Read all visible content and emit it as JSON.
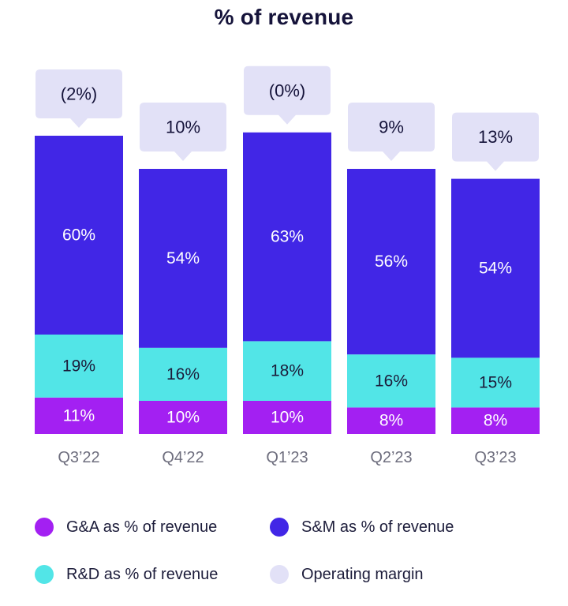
{
  "chart_data": {
    "type": "bar",
    "stacked": true,
    "title": "% of revenue",
    "categories": [
      "Q3’22",
      "Q4’22",
      "Q1’23",
      "Q2’23",
      "Q3’23"
    ],
    "series": [
      {
        "name": "G&A as % of revenue",
        "values": [
          11,
          10,
          10,
          8,
          8
        ],
        "labels": [
          "11%",
          "10%",
          "10%",
          "8%",
          "8%"
        ],
        "color": "#a320f2"
      },
      {
        "name": "R&D as % of revenue",
        "values": [
          19,
          16,
          18,
          16,
          15
        ],
        "labels": [
          "19%",
          "16%",
          "18%",
          "16%",
          "15%"
        ],
        "color": "#52e5e7"
      },
      {
        "name": "S&M as % of revenue",
        "values": [
          60,
          54,
          63,
          56,
          54
        ],
        "labels": [
          "60%",
          "54%",
          "63%",
          "56%",
          "54%"
        ],
        "color": "#4126e6"
      }
    ],
    "operating_margin": {
      "name": "Operating margin",
      "values": [
        -2,
        10,
        0,
        9,
        13
      ],
      "labels": [
        "(2%)",
        "10%",
        "(0%)",
        "9%",
        "13%"
      ],
      "color": "#e2e1f7"
    },
    "ylim": [
      0,
      100
    ],
    "legend_position": "bottom",
    "grid": false
  },
  "legend": [
    {
      "label": "G&A as % of revenue",
      "color": "#a320f2"
    },
    {
      "label": "S&M as % of revenue",
      "color": "#4126e6"
    },
    {
      "label": "R&D as % of revenue",
      "color": "#52e5e7"
    },
    {
      "label": "Operating margin",
      "color": "#e2e1f7"
    }
  ]
}
